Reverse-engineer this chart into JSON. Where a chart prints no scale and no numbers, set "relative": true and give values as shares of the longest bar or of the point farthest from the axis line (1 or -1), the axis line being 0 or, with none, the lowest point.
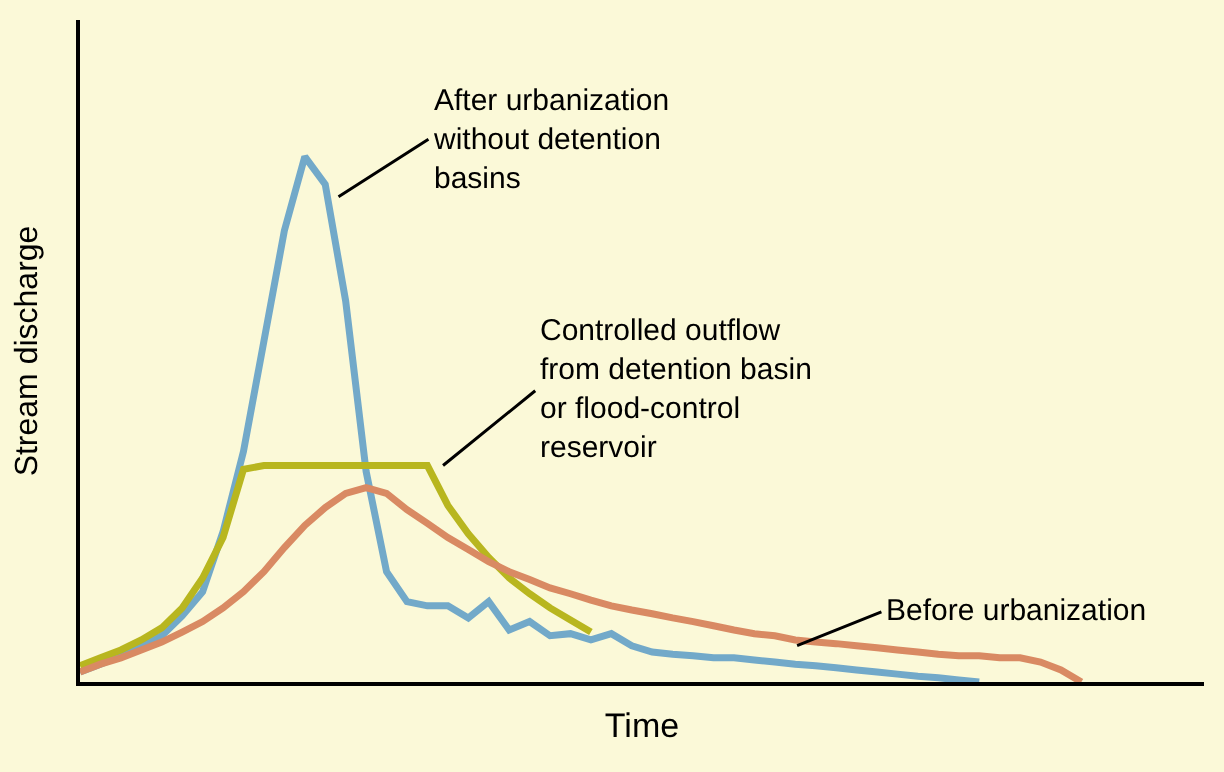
{
  "chart_data": {
    "type": "line",
    "relative": true,
    "xlabel": "Time",
    "ylabel": "Stream discharge",
    "tick_labels": false,
    "grid": false,
    "marker": "none",
    "line_style": "solid",
    "categories": [
      null,
      null,
      null,
      null,
      null,
      null,
      null,
      null,
      null,
      null,
      null,
      null,
      null,
      null,
      null,
      null,
      null,
      null,
      null,
      null,
      null,
      null,
      null,
      null,
      null,
      null,
      null,
      null,
      null,
      null,
      null,
      null,
      null,
      null,
      null,
      null,
      null,
      null,
      null,
      null,
      null,
      null,
      null,
      null,
      null,
      null,
      null,
      null,
      null,
      null,
      null,
      null,
      null,
      null,
      null,
      null
    ],
    "series": [
      {
        "color": "#72a9c9",
        "values": [
          0.019,
          0.034,
          0.05,
          0.069,
          0.088,
          0.126,
          0.172,
          0.286,
          0.439,
          0.649,
          0.859,
          1,
          0.947,
          0.725,
          0.401,
          0.21,
          0.153,
          0.145,
          0.145,
          0.122,
          0.153,
          0.099,
          0.115,
          0.088,
          0.092,
          0.08,
          0.092,
          0.069,
          0.057,
          0.053,
          0.05,
          0.046,
          0.046,
          0.042,
          0.038,
          0.034,
          0.031,
          0.027,
          0.023,
          0.019,
          0.015,
          0.011,
          0.008,
          0.004,
          0,
          null,
          null,
          null,
          null,
          null,
          null,
          null,
          null,
          null,
          null,
          null
        ]
      },
      {
        "color": "#b8b61f",
        "values": [
          0.031,
          0.046,
          0.061,
          0.08,
          0.103,
          0.141,
          0.198,
          0.275,
          0.405,
          0.412,
          0.412,
          0.412,
          0.412,
          0.412,
          0.412,
          0.412,
          0.412,
          0.412,
          0.336,
          0.282,
          0.237,
          0.198,
          0.168,
          0.141,
          0.118,
          0.095,
          null,
          null,
          null,
          null,
          null,
          null,
          null,
          null,
          null,
          null,
          null,
          null,
          null,
          null,
          null,
          null,
          null,
          null,
          null,
          null,
          null,
          null,
          null,
          null,
          null,
          null,
          null,
          null,
          null,
          null
        ]
      },
      {
        "color": "#d98a63",
        "values": [
          0.019,
          0.034,
          0.046,
          0.061,
          0.076,
          0.095,
          0.115,
          0.141,
          0.172,
          0.21,
          0.256,
          0.298,
          0.332,
          0.359,
          0.37,
          0.359,
          0.328,
          0.302,
          0.275,
          0.252,
          0.229,
          0.21,
          0.195,
          0.179,
          0.168,
          0.156,
          0.145,
          0.137,
          0.13,
          0.122,
          0.115,
          0.107,
          0.099,
          0.092,
          0.088,
          0.08,
          0.076,
          0.073,
          0.069,
          0.065,
          0.061,
          0.057,
          0.053,
          0.05,
          0.05,
          0.046,
          0.046,
          0.038,
          0.023,
          0,
          null,
          null,
          null,
          null,
          null,
          null
        ]
      }
    ],
    "annotations": [
      "After urbanization\nwithout detention\nbasins",
      "Controlled outflow\nfrom detention basin\nor flood-control\nreservoir",
      "Before urbanization"
    ]
  }
}
